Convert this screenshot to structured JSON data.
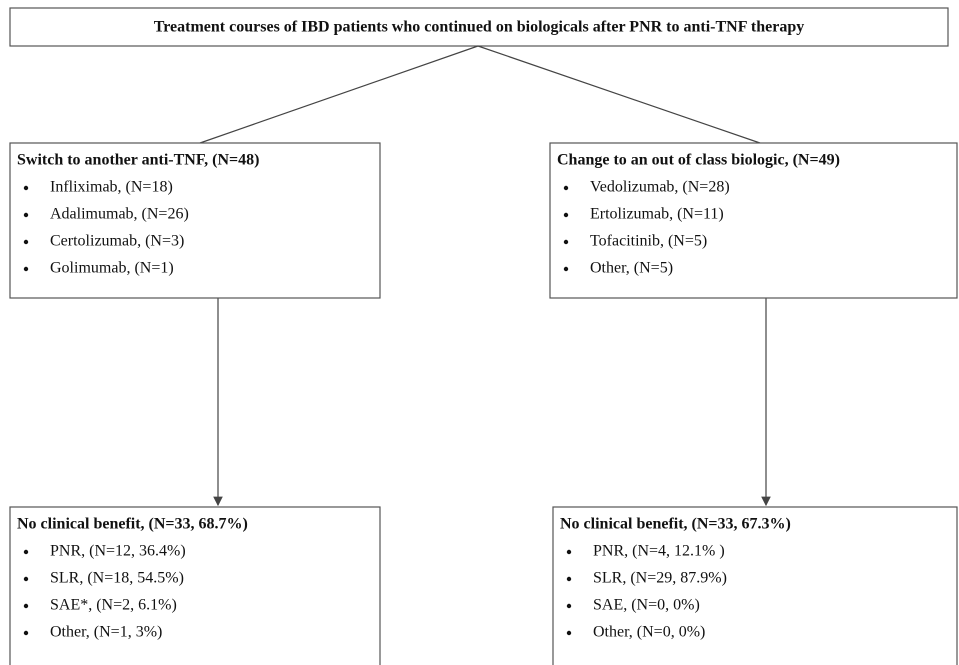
{
  "header": {
    "title": "Treatment courses of IBD patients who continued on biologicals after PNR to anti-TNF therapy"
  },
  "nodes": [
    {
      "title": "Switch to another anti-TNF, (N=48)",
      "items": [
        "Infliximab, (N=18)",
        "Adalimumab, (N=26)",
        "Certolizumab, (N=3)",
        "Golimumab, (N=1)"
      ]
    },
    {
      "title": "Change to an out of class biologic, (N=49)",
      "items": [
        "Vedolizumab, (N=28)",
        "Ertolizumab, (N=11)",
        "Tofacitinib, (N=5)",
        "Other, (N=5)"
      ]
    },
    {
      "title": "No clinical benefit, (N=33, 68.7%)",
      "items": [
        "PNR, (N=12, 36.4%)",
        "SLR, (N=18, 54.5%)",
        "SAE*, (N=2, 6.1%)",
        "Other, (N=1, 3%)"
      ]
    },
    {
      "title": "No clinical benefit, (N=33, 67.3%)",
      "items": [
        "PNR, (N=4, 12.1% )",
        "SLR, (N=29, 87.9%)",
        "SAE, (N=0, 0%)",
        "Other, (N=0, 0%)"
      ]
    }
  ]
}
